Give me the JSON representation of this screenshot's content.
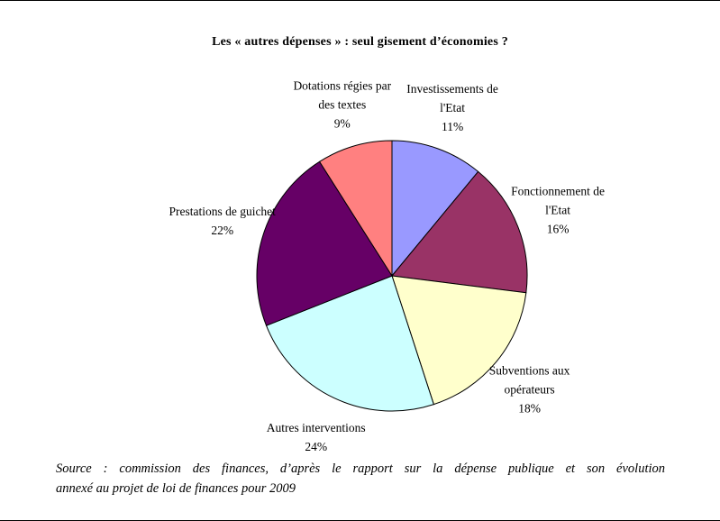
{
  "chart_data": {
    "type": "pie",
    "title": "Les « autres dépenses » : seul gisement d’économies ?",
    "legend_position": "none",
    "start_angle_deg": 0,
    "direction": "clockwise",
    "slices": [
      {
        "name": "Investissements de l'Etat",
        "value": 11,
        "percent_label": "11%",
        "color": "#9999FF",
        "label_lines": [
          "Investissements de",
          "l'Etat"
        ]
      },
      {
        "name": "Fonctionnement de l'Etat",
        "value": 16,
        "percent_label": "16%",
        "color": "#993366",
        "label_lines": [
          "Fonctionnement de",
          "l'Etat"
        ]
      },
      {
        "name": "Subventions aux opérateurs",
        "value": 18,
        "percent_label": "18%",
        "color": "#FFFFCC",
        "label_lines": [
          "Subventions aux",
          "opérateurs"
        ]
      },
      {
        "name": "Autres interventions",
        "value": 24,
        "percent_label": "24%",
        "color": "#CCFFFF",
        "label_lines": [
          "Autres interventions"
        ]
      },
      {
        "name": "Prestations de guichet",
        "value": 22,
        "percent_label": "22%",
        "color": "#660066",
        "label_lines": [
          "Prestations de guichet"
        ]
      },
      {
        "name": "Dotations régies par des textes",
        "value": 9,
        "percent_label": "9%",
        "color": "#FF8080",
        "label_lines": [
          "Dotations régies par",
          "des textes"
        ]
      }
    ],
    "outline_color": "#000000"
  },
  "source": {
    "line1": "Source : commission des finances, d’après le rapport sur la dépense publique et son évolution",
    "line2": "annexé au projet de loi de finances pour 2009"
  }
}
